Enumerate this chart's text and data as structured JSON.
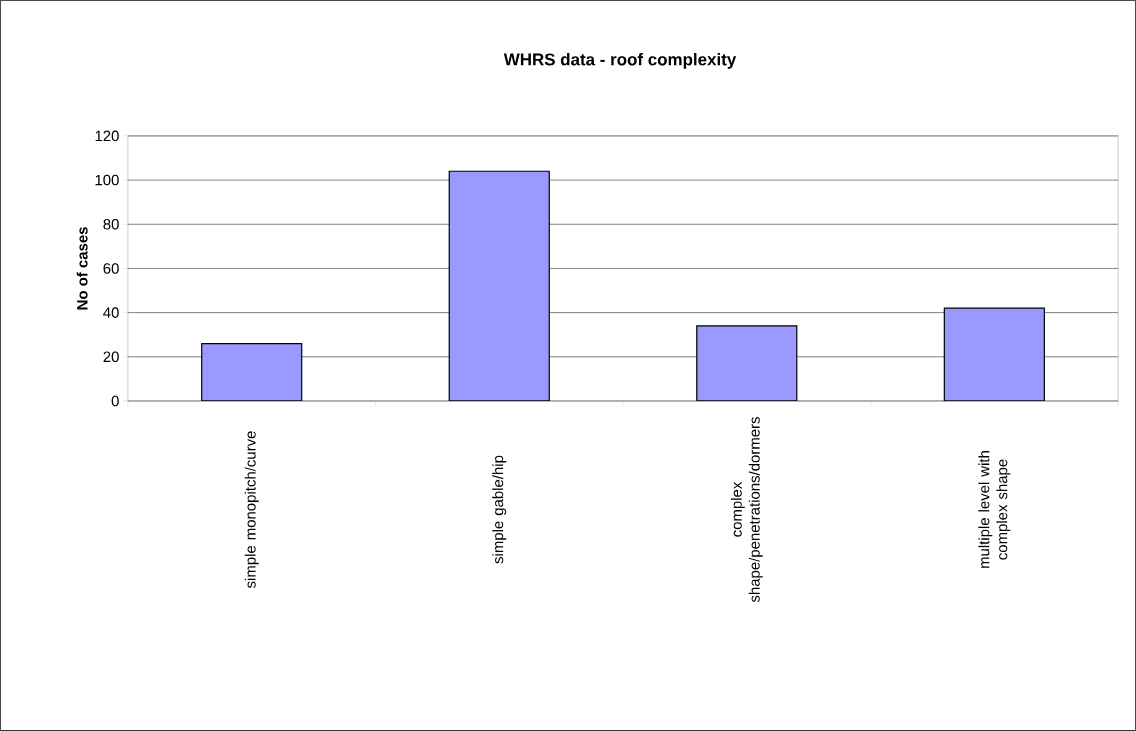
{
  "chart_data": {
    "type": "bar",
    "title": "WHRS data - roof complexity",
    "ylabel": "No of cases",
    "categories": [
      "simple monopitch/curve",
      "simple gable/hip",
      "complex shape/penetrations/dormers",
      "multiple level with complex shape"
    ],
    "values": [
      26,
      104,
      34,
      42
    ],
    "color": "#9999ff",
    "ylim": [
      0,
      120
    ],
    "yticks": [
      0,
      20,
      40,
      60,
      80,
      100,
      120
    ],
    "grid": "y"
  }
}
